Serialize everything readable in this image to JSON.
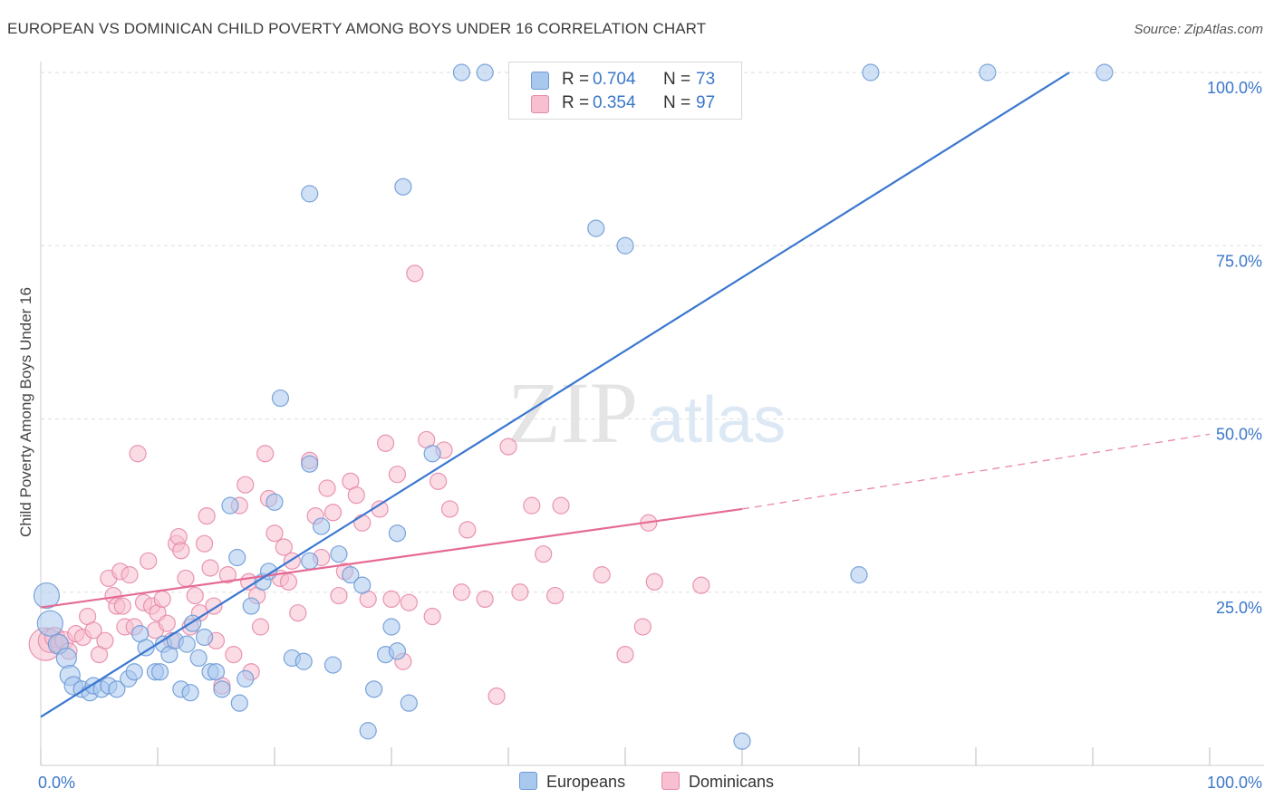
{
  "header": {
    "title": "EUROPEAN VS DOMINICAN CHILD POVERTY AMONG BOYS UNDER 16 CORRELATION CHART",
    "source": "Source: ZipAtlas.com"
  },
  "watermark": {
    "zip": "ZIP",
    "atlas": "atlas"
  },
  "legend": {
    "rows": [
      {
        "r_label": "R =",
        "r_value": "0.704",
        "n_label": "N =",
        "n_value": "73"
      },
      {
        "r_label": "R =",
        "r_value": "0.354",
        "n_label": "N =",
        "n_value": "97"
      }
    ]
  },
  "bottom_legend": {
    "europeans": "Europeans",
    "dominicans": "Dominicans"
  },
  "colors": {
    "blue_fill": "#a9c8ee",
    "blue_stroke": "#6d9ad6",
    "blue_line": "#3a77d0",
    "pink_fill": "#f7bfd0",
    "pink_stroke": "#e58aa8",
    "pink_line": "#e56a94",
    "tick_text": "#3a77c9",
    "grid": "#dddddd"
  },
  "chart_data": {
    "type": "scatter",
    "title": "EUROPEAN VS DOMINICAN CHILD POVERTY AMONG BOYS UNDER 16 CORRELATION CHART",
    "xlabel": "",
    "ylabel": "Child Poverty Among Boys Under 16",
    "xlim": [
      0,
      100
    ],
    "ylim": [
      0,
      100
    ],
    "x_tick_labels": [
      "0.0%",
      "100.0%"
    ],
    "y_tick_labels": [
      "25.0%",
      "50.0%",
      "75.0%",
      "100.0%"
    ],
    "y_ticks": [
      25,
      50,
      75,
      100
    ],
    "grid": true,
    "series": [
      {
        "name": "Europeans",
        "r": 0.704,
        "n": 73,
        "trend": {
          "x0": 0,
          "y0": 7,
          "x1": 88,
          "y1": 100
        },
        "points": [
          [
            0.5,
            24.5,
            14
          ],
          [
            0.8,
            20.5,
            14
          ],
          [
            1.5,
            17.5,
            11
          ],
          [
            2.2,
            15.5,
            11
          ],
          [
            2.5,
            13,
            11
          ],
          [
            2.8,
            11.5,
            10
          ],
          [
            3.5,
            11,
            9
          ],
          [
            4.2,
            10.5,
            9
          ],
          [
            4.5,
            11.5,
            9
          ],
          [
            5.2,
            11,
            9
          ],
          [
            5.8,
            11.5,
            9
          ],
          [
            6.5,
            11,
            9
          ],
          [
            7.5,
            12.5,
            9
          ],
          [
            8,
            13.5,
            9
          ],
          [
            8.5,
            19,
            9
          ],
          [
            9,
            17,
            9
          ],
          [
            9.8,
            13.5,
            9
          ],
          [
            10.2,
            13.5,
            9
          ],
          [
            10.5,
            17.5,
            9
          ],
          [
            11,
            16,
            9
          ],
          [
            11.5,
            18,
            9
          ],
          [
            12,
            11,
            9
          ],
          [
            12.5,
            17.5,
            9
          ],
          [
            12.8,
            10.5,
            9
          ],
          [
            13,
            20.5,
            9
          ],
          [
            13.5,
            15.5,
            9
          ],
          [
            14,
            18.5,
            9
          ],
          [
            14.5,
            13.5,
            9
          ],
          [
            15,
            13.5,
            9
          ],
          [
            15.5,
            11,
            9
          ],
          [
            16.2,
            37.5,
            9
          ],
          [
            16.8,
            30,
            9
          ],
          [
            17,
            9,
            9
          ],
          [
            17.5,
            12.5,
            9
          ],
          [
            18,
            23,
            9
          ],
          [
            19,
            26.5,
            9
          ],
          [
            19.5,
            28,
            9
          ],
          [
            20,
            38,
            9
          ],
          [
            20.5,
            53,
            9
          ],
          [
            21.5,
            15.5,
            9
          ],
          [
            22.5,
            15,
            9
          ],
          [
            23,
            29.5,
            9
          ],
          [
            23,
            43.5,
            9
          ],
          [
            23,
            82.5,
            9
          ],
          [
            24,
            34.5,
            9
          ],
          [
            25,
            14.5,
            9
          ],
          [
            25.5,
            30.5,
            9
          ],
          [
            26.5,
            27.5,
            9
          ],
          [
            27.5,
            26,
            9
          ],
          [
            28,
            5,
            9
          ],
          [
            28.5,
            11,
            9
          ],
          [
            29.5,
            16,
            9
          ],
          [
            30,
            20,
            9
          ],
          [
            30.5,
            33.5,
            9
          ],
          [
            30.5,
            16.5,
            9
          ],
          [
            31,
            83.5,
            9
          ],
          [
            31.5,
            9,
            9
          ],
          [
            33.5,
            45,
            9
          ],
          [
            36,
            100,
            9
          ],
          [
            38,
            100,
            9
          ],
          [
            47.5,
            77.5,
            9
          ],
          [
            50,
            75,
            9
          ],
          [
            52,
            100,
            9
          ],
          [
            54,
            100,
            9
          ],
          [
            60,
            3.5,
            9
          ],
          [
            70,
            27.5,
            9
          ],
          [
            71,
            100,
            9
          ],
          [
            81,
            100,
            9
          ],
          [
            91,
            100,
            9
          ]
        ]
      },
      {
        "name": "Dominicans",
        "r": 0.354,
        "n": 97,
        "trend": {
          "x0": 0,
          "y0": 22.8,
          "x1": 60,
          "y1": 37,
          "dash_x1": 100,
          "dash_y1": 47.8
        },
        "points": [
          [
            0.4,
            17.5,
            18
          ],
          [
            0.8,
            18,
            13
          ],
          [
            1.2,
            18.5,
            11
          ],
          [
            1.6,
            17.5,
            10
          ],
          [
            2,
            18,
            10
          ],
          [
            2.4,
            16.5,
            9
          ],
          [
            3,
            19,
            9
          ],
          [
            3.6,
            18.5,
            9
          ],
          [
            4,
            21.5,
            9
          ],
          [
            4.5,
            19.5,
            9
          ],
          [
            5,
            16,
            9
          ],
          [
            5.5,
            18,
            9
          ],
          [
            5.8,
            27,
            9
          ],
          [
            6.2,
            24.5,
            9
          ],
          [
            6.5,
            23,
            9
          ],
          [
            6.8,
            28,
            9
          ],
          [
            7,
            23,
            9
          ],
          [
            7.2,
            20,
            9
          ],
          [
            7.6,
            27.5,
            9
          ],
          [
            8,
            20,
            9
          ],
          [
            8.3,
            45,
            9
          ],
          [
            8.8,
            23.5,
            9
          ],
          [
            9.2,
            29.5,
            9
          ],
          [
            9.5,
            23,
            9
          ],
          [
            9.8,
            19.5,
            9
          ],
          [
            10,
            22,
            9
          ],
          [
            10.4,
            24,
            9
          ],
          [
            10.8,
            20.5,
            9
          ],
          [
            11.2,
            18,
            9
          ],
          [
            11.6,
            32,
            9
          ],
          [
            11.8,
            33,
            9
          ],
          [
            12,
            31,
            9
          ],
          [
            12.4,
            27,
            9
          ],
          [
            12.8,
            20,
            9
          ],
          [
            13.2,
            24.5,
            9
          ],
          [
            13.6,
            22,
            9
          ],
          [
            14,
            32,
            9
          ],
          [
            14.2,
            36,
            9
          ],
          [
            14.5,
            28.5,
            9
          ],
          [
            14.8,
            23,
            9
          ],
          [
            15,
            18,
            9
          ],
          [
            15.5,
            11.5,
            9
          ],
          [
            16,
            27.5,
            9
          ],
          [
            16.5,
            16,
            9
          ],
          [
            17,
            37.5,
            9
          ],
          [
            17.5,
            40.5,
            9
          ],
          [
            17.8,
            26.5,
            9
          ],
          [
            18,
            13.5,
            9
          ],
          [
            18.5,
            24.5,
            9
          ],
          [
            18.8,
            20,
            9
          ],
          [
            19.2,
            45,
            9
          ],
          [
            19.5,
            38.5,
            9
          ],
          [
            20,
            33.5,
            9
          ],
          [
            20.5,
            27,
            9
          ],
          [
            20.8,
            31.5,
            9
          ],
          [
            21.2,
            26.5,
            9
          ],
          [
            21.5,
            29.5,
            9
          ],
          [
            22,
            22,
            9
          ],
          [
            23,
            44,
            9
          ],
          [
            23.5,
            36,
            9
          ],
          [
            24,
            30,
            9
          ],
          [
            24.5,
            40,
            9
          ],
          [
            25,
            36.5,
            9
          ],
          [
            25.5,
            24.5,
            9
          ],
          [
            26,
            28,
            9
          ],
          [
            26.5,
            41,
            9
          ],
          [
            27,
            39,
            9
          ],
          [
            27.5,
            35,
            9
          ],
          [
            28,
            24,
            9
          ],
          [
            29,
            37,
            9
          ],
          [
            29.5,
            46.5,
            9
          ],
          [
            30,
            24,
            9
          ],
          [
            30.5,
            42,
            9
          ],
          [
            31,
            15,
            9
          ],
          [
            31.5,
            23.5,
            9
          ],
          [
            32,
            71,
            9
          ],
          [
            33,
            47,
            9
          ],
          [
            33.5,
            21.5,
            9
          ],
          [
            34,
            41,
            9
          ],
          [
            34.5,
            45.5,
            9
          ],
          [
            35,
            37,
            9
          ],
          [
            36,
            25,
            9
          ],
          [
            36.5,
            34,
            9
          ],
          [
            38,
            24,
            9
          ],
          [
            39,
            10,
            9
          ],
          [
            40,
            46,
            9
          ],
          [
            41,
            25,
            9
          ],
          [
            42,
            37.5,
            9
          ],
          [
            43,
            30.5,
            9
          ],
          [
            44,
            24.5,
            9
          ],
          [
            44.5,
            37.5,
            9
          ],
          [
            48,
            27.5,
            9
          ],
          [
            50,
            16,
            9
          ],
          [
            51.5,
            20,
            9
          ],
          [
            52,
            35,
            9
          ],
          [
            52.5,
            26.5,
            9
          ],
          [
            56.5,
            26,
            9
          ]
        ]
      }
    ]
  }
}
